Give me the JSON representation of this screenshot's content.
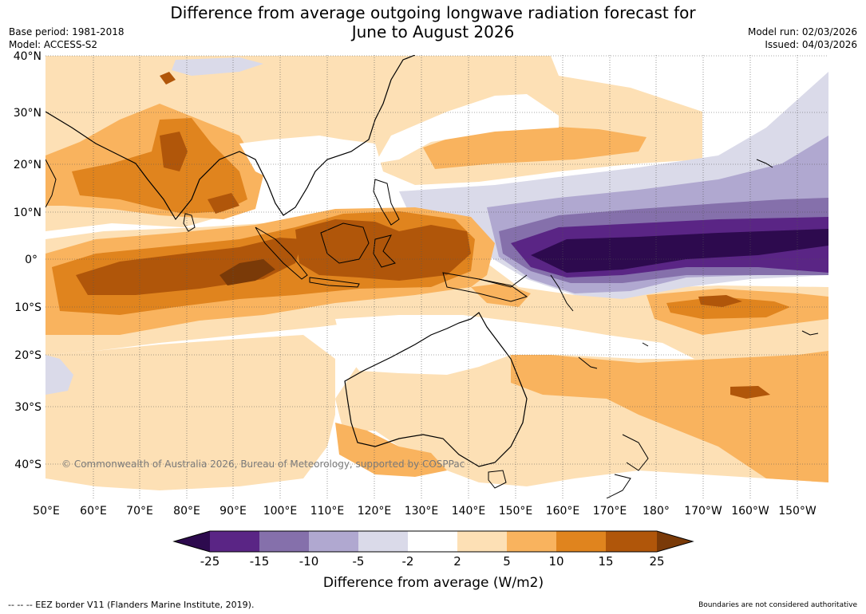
{
  "title_line1": "Difference from average outgoing longwave radiation forecast for",
  "title_line2": "June to August 2026",
  "base_period": "Base period: 1981-2018",
  "model": "Model: ACCESS-S2",
  "model_run": "Model run: 02/03/2026",
  "issued": "Issued: 04/03/2026",
  "lat_labels": [
    "40°N",
    "30°N",
    "20°N",
    "10°N",
    "0°",
    "10°S",
    "20°S",
    "30°S",
    "40°S"
  ],
  "lon_labels": [
    "50°E",
    "60°E",
    "70°E",
    "80°E",
    "90°E",
    "100°E",
    "110°E",
    "120°E",
    "130°E",
    "140°E",
    "150°E",
    "160°E",
    "170°E",
    "180°",
    "170°W",
    "160°W",
    "150°W"
  ],
  "copyright": "© Commonwealth of Australia 2026, Bureau of Meteorology, supported by COSPPac",
  "colorbar": {
    "title": "Difference from average (W/m2)",
    "ticks": [
      "-25",
      "-15",
      "-10",
      "-5",
      "-2",
      "2",
      "5",
      "10",
      "15",
      "25"
    ],
    "colors": {
      "lt_-25": "#2d0a4e",
      "-25_-15": "#5a2585",
      "-15_-10": "#8570ab",
      "-10_-5": "#b0a8d0",
      "-5_-2": "#dadae9",
      "-2_2": "#ffffff",
      "2_5": "#fde0b5",
      "5_10": "#f9b35e",
      "10_15": "#e0841e",
      "15_25": "#b0560a",
      "gt_25": "#7a3a08"
    }
  },
  "footer_left": "--  --  -- EEZ border V11 (Flanders Marine Institute, 2019).",
  "footer_right": "Boundaries are not considered authoritative"
}
